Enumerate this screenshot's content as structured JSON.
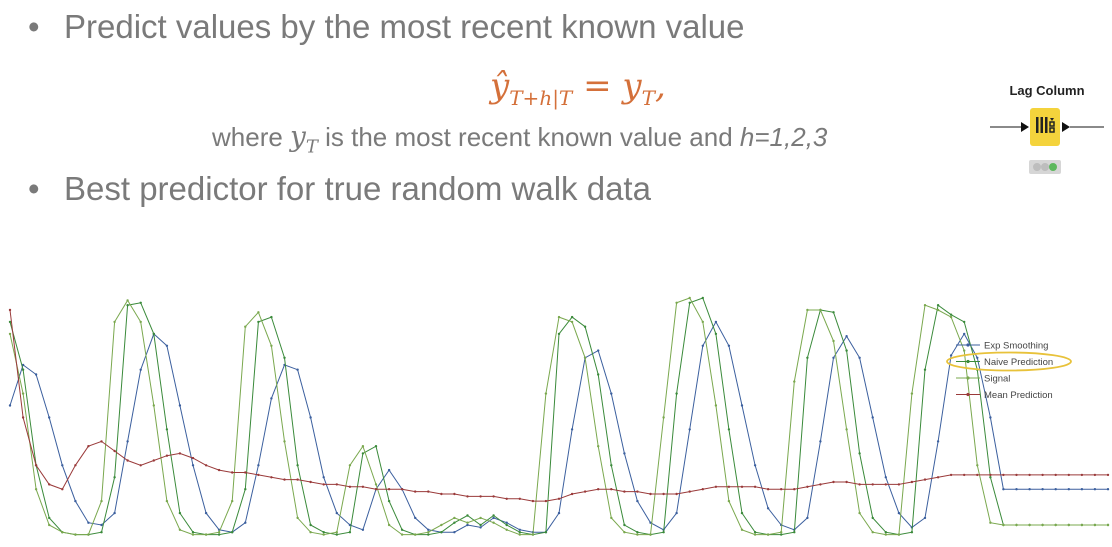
{
  "slide": {
    "bullet1": "Predict values by the most recent known value",
    "bullet2": "Best predictor for true random walk data",
    "bullet_symbol": "•",
    "formula_hat_y": "ŷ",
    "formula_sub_left": "T+h|T",
    "formula_equals": " = y",
    "formula_sub_right": "T",
    "formula_end": ",",
    "where_prefix": "where ",
    "where_var": "y",
    "where_var_sub": "T",
    "where_middle": " is the most recent known value and ",
    "where_h": "h=1,2,3"
  },
  "node": {
    "title": "Lag Column",
    "icon": "lag-column-icon",
    "color": "#f4d33c",
    "status_colors": [
      "#bdbdbd",
      "#bdbdbd",
      "#5cb85c"
    ]
  },
  "chart_data": {
    "type": "line",
    "title": "",
    "xlabel": "",
    "ylabel": "",
    "grid": false,
    "legend_position": "right",
    "highlighted_series": "Naive Prediction",
    "x_count": 85,
    "series": [
      {
        "name": "Exp Smoothing",
        "color": "#3b5f9e",
        "values": [
          0.55,
          0.72,
          0.68,
          0.5,
          0.3,
          0.15,
          0.06,
          0.05,
          0.1,
          0.4,
          0.7,
          0.85,
          0.8,
          0.55,
          0.3,
          0.1,
          0.03,
          0.02,
          0.06,
          0.3,
          0.58,
          0.72,
          0.7,
          0.5,
          0.25,
          0.1,
          0.05,
          0.03,
          0.2,
          0.28,
          0.2,
          0.08,
          0.03,
          0.02,
          0.02,
          0.05,
          0.04,
          0.08,
          0.06,
          0.03,
          0.02,
          0.02,
          0.1,
          0.45,
          0.75,
          0.78,
          0.6,
          0.35,
          0.15,
          0.06,
          0.03,
          0.1,
          0.45,
          0.8,
          0.9,
          0.8,
          0.55,
          0.3,
          0.12,
          0.05,
          0.03,
          0.08,
          0.4,
          0.75,
          0.84,
          0.75,
          0.5,
          0.25,
          0.1,
          0.04,
          0.08,
          0.4,
          0.76,
          0.85,
          0.75,
          0.5,
          0.2,
          0.2,
          0.2,
          0.2,
          0.2,
          0.2,
          0.2,
          0.2,
          0.2
        ]
      },
      {
        "name": "Naive Prediction",
        "color": "#3a8a3a",
        "values": [
          0.9,
          0.7,
          0.3,
          0.08,
          0.02,
          0.01,
          0.01,
          0.02,
          0.25,
          0.97,
          0.98,
          0.85,
          0.45,
          0.1,
          0.02,
          0.01,
          0.01,
          0.02,
          0.2,
          0.9,
          0.92,
          0.75,
          0.3,
          0.05,
          0.02,
          0.01,
          0.02,
          0.35,
          0.38,
          0.15,
          0.03,
          0.01,
          0.01,
          0.02,
          0.06,
          0.09,
          0.05,
          0.09,
          0.05,
          0.02,
          0.01,
          0.02,
          0.85,
          0.92,
          0.88,
          0.68,
          0.3,
          0.05,
          0.02,
          0.01,
          0.02,
          0.6,
          0.98,
          1.0,
          0.85,
          0.45,
          0.1,
          0.02,
          0.01,
          0.01,
          0.02,
          0.75,
          0.95,
          0.94,
          0.78,
          0.35,
          0.08,
          0.02,
          0.01,
          0.02,
          0.7,
          0.97,
          0.93,
          0.9,
          0.7,
          0.25,
          0.05,
          0.05,
          0.05,
          0.05,
          0.05,
          0.05,
          0.05,
          0.05,
          0.05
        ]
      },
      {
        "name": "Signal",
        "color": "#7aa84e",
        "values": [
          0.85,
          0.6,
          0.2,
          0.05,
          0.02,
          0.01,
          0.01,
          0.15,
          0.9,
          0.99,
          0.9,
          0.55,
          0.15,
          0.03,
          0.01,
          0.01,
          0.02,
          0.15,
          0.88,
          0.94,
          0.8,
          0.4,
          0.08,
          0.02,
          0.01,
          0.02,
          0.3,
          0.38,
          0.22,
          0.05,
          0.01,
          0.01,
          0.02,
          0.05,
          0.08,
          0.06,
          0.08,
          0.06,
          0.03,
          0.01,
          0.01,
          0.6,
          0.92,
          0.9,
          0.75,
          0.38,
          0.08,
          0.02,
          0.01,
          0.01,
          0.5,
          0.98,
          1.0,
          0.9,
          0.55,
          0.15,
          0.03,
          0.01,
          0.01,
          0.02,
          0.65,
          0.95,
          0.95,
          0.82,
          0.45,
          0.1,
          0.02,
          0.01,
          0.01,
          0.6,
          0.97,
          0.95,
          0.92,
          0.78,
          0.3,
          0.06,
          0.05,
          0.05,
          0.05,
          0.05,
          0.05,
          0.05,
          0.05,
          0.05,
          0.05
        ]
      },
      {
        "name": "Mean Prediction",
        "color": "#9a3a3a",
        "values": [
          0.95,
          0.5,
          0.3,
          0.22,
          0.2,
          0.3,
          0.38,
          0.4,
          0.36,
          0.32,
          0.3,
          0.32,
          0.34,
          0.35,
          0.33,
          0.3,
          0.28,
          0.27,
          0.27,
          0.26,
          0.25,
          0.24,
          0.24,
          0.23,
          0.22,
          0.22,
          0.21,
          0.21,
          0.2,
          0.2,
          0.2,
          0.19,
          0.19,
          0.18,
          0.18,
          0.17,
          0.17,
          0.17,
          0.16,
          0.16,
          0.15,
          0.15,
          0.16,
          0.18,
          0.19,
          0.2,
          0.2,
          0.19,
          0.19,
          0.18,
          0.18,
          0.18,
          0.19,
          0.2,
          0.21,
          0.21,
          0.21,
          0.21,
          0.2,
          0.2,
          0.2,
          0.21,
          0.22,
          0.23,
          0.23,
          0.22,
          0.22,
          0.22,
          0.22,
          0.23,
          0.24,
          0.25,
          0.26,
          0.26,
          0.26,
          0.26,
          0.26,
          0.26,
          0.26,
          0.26,
          0.26,
          0.26,
          0.26,
          0.26,
          0.26
        ]
      }
    ]
  }
}
